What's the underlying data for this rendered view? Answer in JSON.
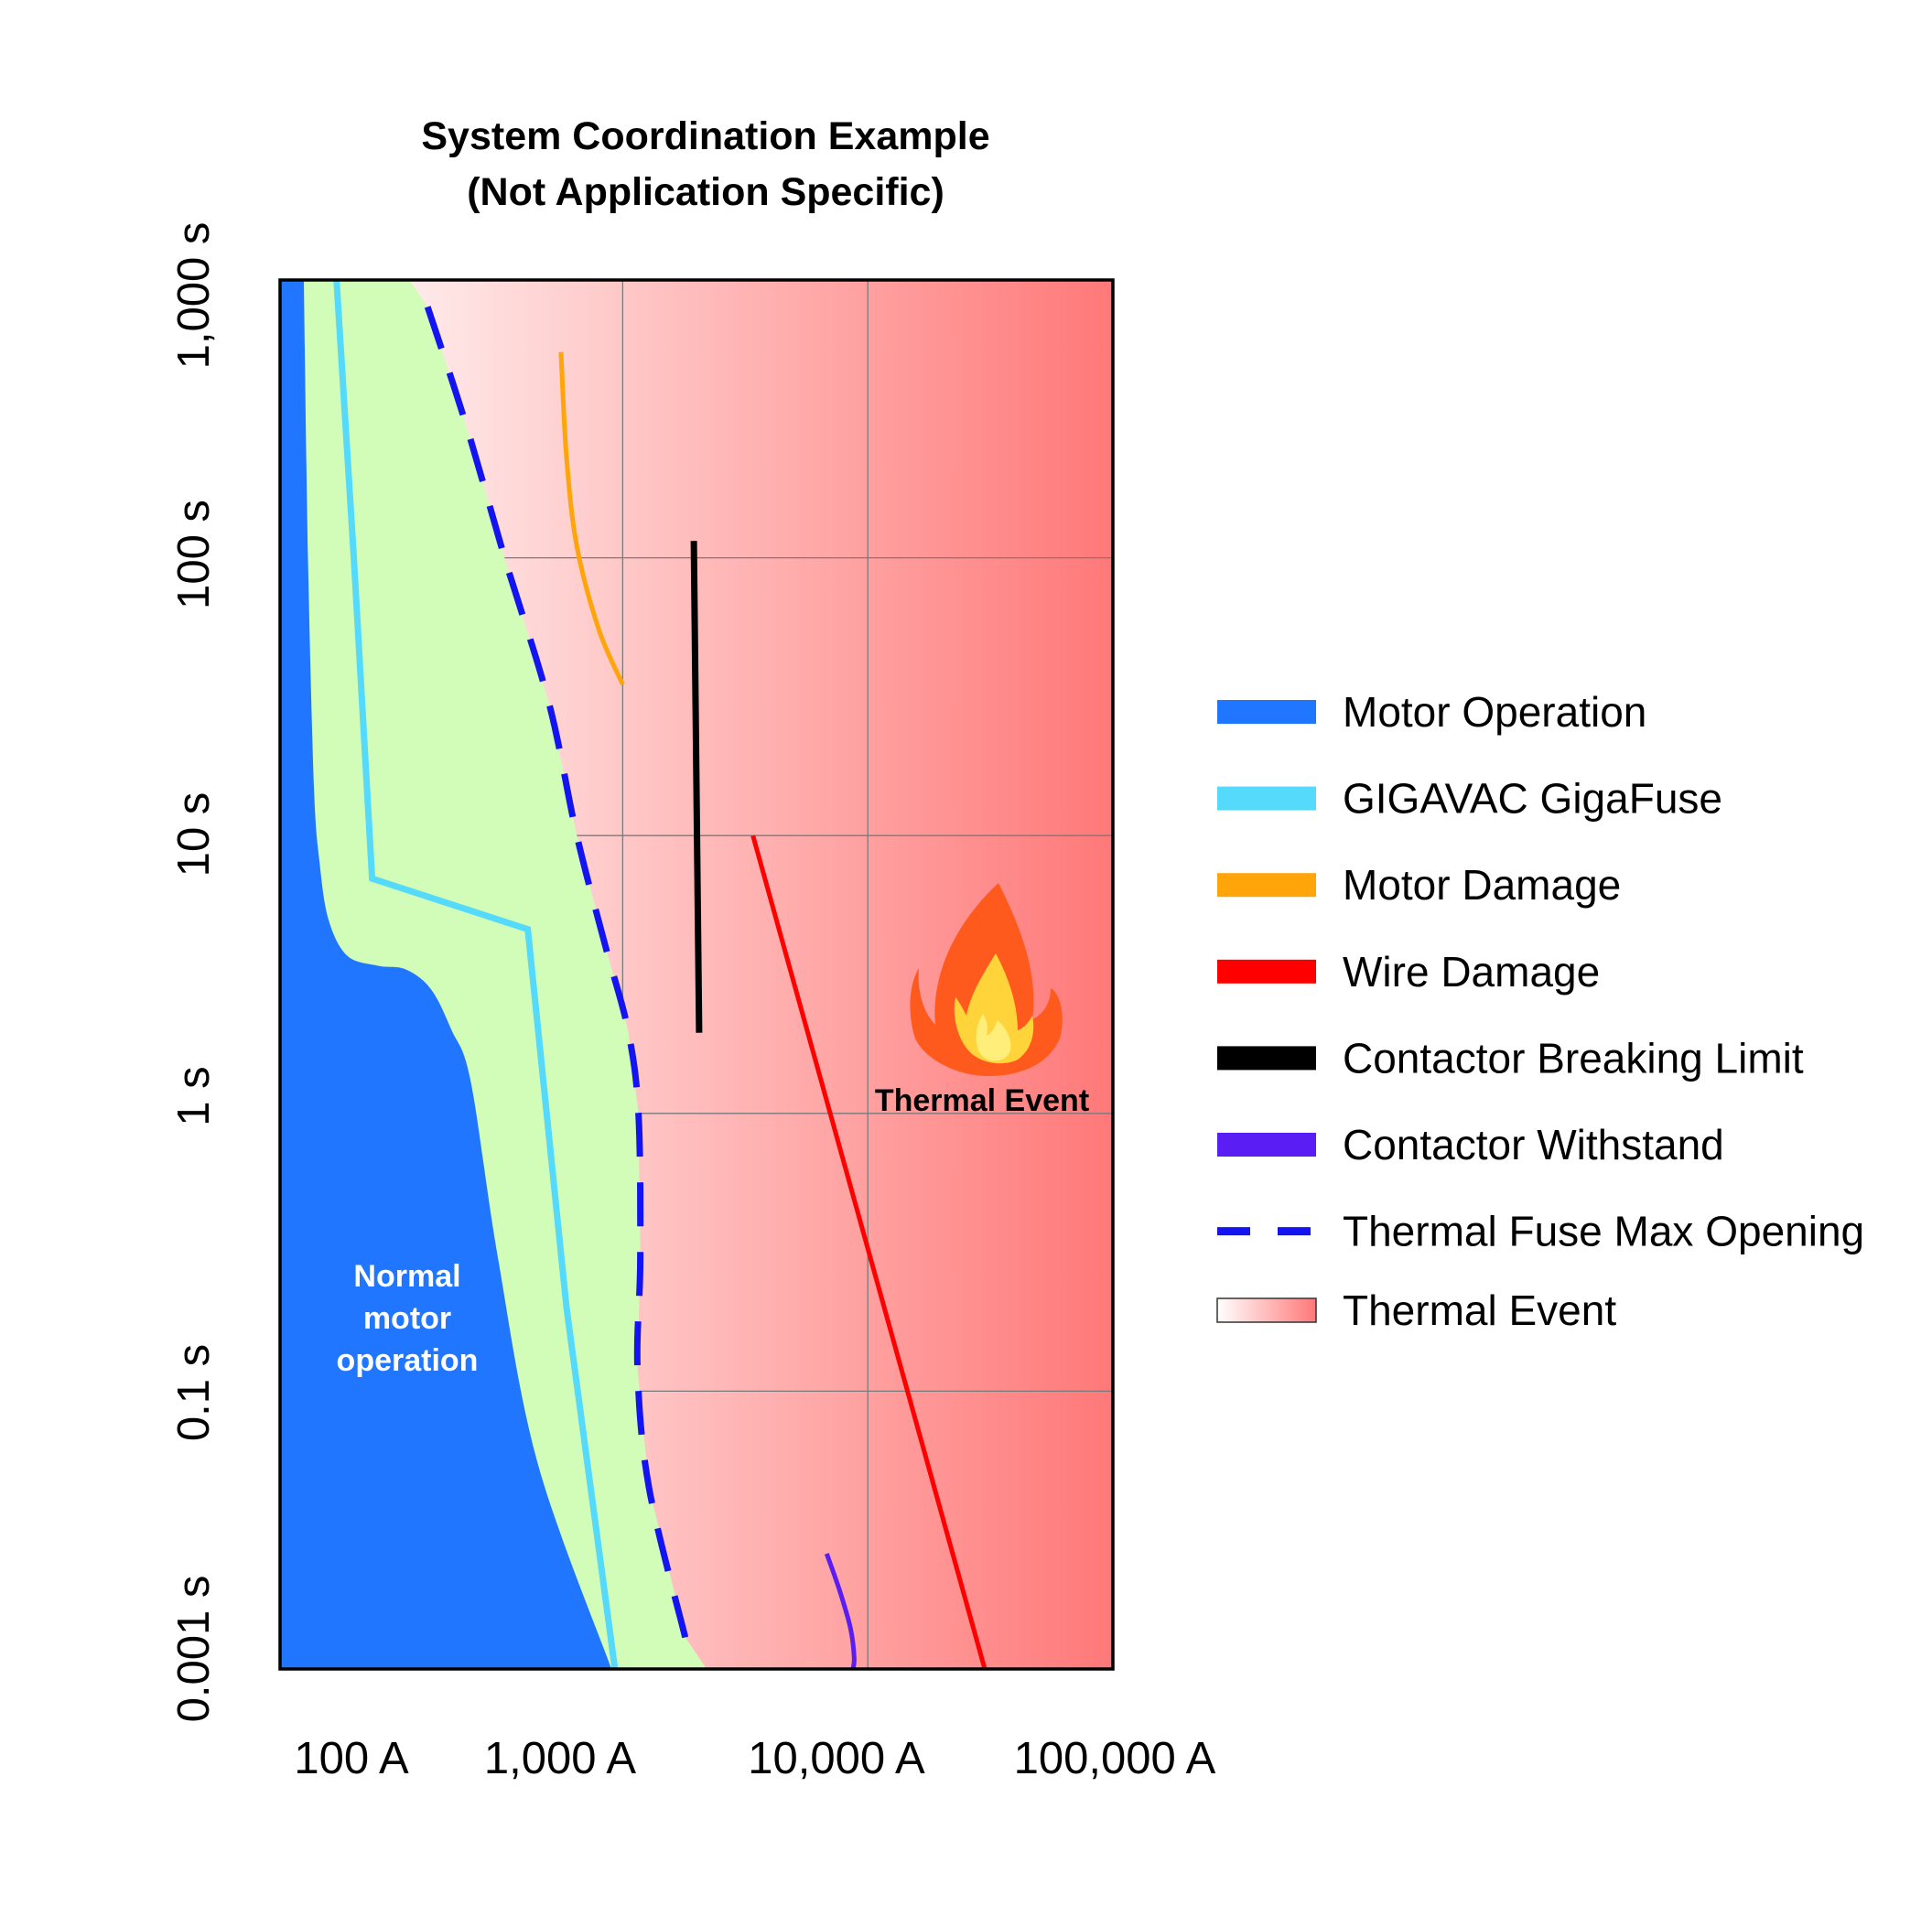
{
  "chart_data": {
    "type": "line",
    "title": "System Coordination Example",
    "subtitle": "(Not Application Specific)",
    "xlabel": "",
    "ylabel": "",
    "x_scale": "log",
    "y_scale": "log",
    "xlim": [
      40,
      100000
    ],
    "ylim": [
      0.01,
      1000
    ],
    "x_tick_labels": [
      "100 A",
      "1,000 A",
      "10,000 A",
      "100,000 A"
    ],
    "y_tick_labels": [
      "1,000 s",
      "100 s",
      "10 s",
      "1 s",
      "0.1 s",
      "0.001 s"
    ],
    "grid": true,
    "legend_position": "right",
    "annotations": [
      {
        "id": "normal-motor",
        "lines": [
          "Normal",
          "motor",
          "operation"
        ]
      },
      {
        "id": "thermal-event",
        "lines": [
          "Thermal Event"
        ]
      }
    ],
    "series": [
      {
        "key": "motor_operation",
        "name": "Motor Operation",
        "style": "area",
        "color": "#2176ff",
        "points": [
          [
            40,
            1000
          ],
          [
            50,
            1000
          ],
          [
            52,
            100
          ],
          [
            55,
            15
          ],
          [
            58,
            8
          ],
          [
            63,
            5
          ],
          [
            75,
            3.7
          ],
          [
            100,
            3.4
          ],
          [
            130,
            3.3
          ],
          [
            165,
            2.8
          ],
          [
            200,
            2.0
          ],
          [
            240,
            1.3
          ],
          [
            310,
            0.3
          ],
          [
            450,
            0.055
          ],
          [
            900,
            0.01
          ]
        ]
      },
      {
        "key": "gigavac_gigafuse",
        "name": "GIGAVAC GigaFuse",
        "style": "line",
        "color": "#55dafc",
        "points": [
          [
            68,
            1000
          ],
          [
            80,
            100
          ],
          [
            95,
            7
          ],
          [
            410,
            4.6
          ],
          [
            590,
            0.2
          ],
          [
            930,
            0.01
          ]
        ]
      },
      {
        "key": "motor_damage",
        "name": "Motor Damage",
        "style": "line",
        "color": "#ffa50a",
        "points": [
          [
            560,
            550
          ],
          [
            590,
            230
          ],
          [
            650,
            110
          ],
          [
            800,
            55
          ],
          [
            1000,
            35
          ]
        ]
      },
      {
        "key": "wire_damage",
        "name": "Wire Damage",
        "style": "line",
        "color": "#ff0000",
        "points": [
          [
            3400,
            10
          ],
          [
            30000,
            0.01
          ]
        ]
      },
      {
        "key": "contactor_breaking_limit",
        "name": "Contactor Breaking Limit",
        "style": "line",
        "color": "#000000",
        "points": [
          [
            1950,
            115
          ],
          [
            2050,
            1.95
          ]
        ]
      },
      {
        "key": "contactor_withstand",
        "name": "Contactor Withstand",
        "style": "line",
        "color": "#5a1ef5",
        "points": [
          [
            6800,
            0.026
          ],
          [
            7700,
            0.019
          ],
          [
            8500,
            0.014
          ],
          [
            8800,
            0.011
          ],
          [
            8700,
            0.01
          ]
        ]
      },
      {
        "key": "thermal_fuse_max_opening",
        "name": "Thermal Fuse Max Opening",
        "style": "dashed",
        "color": "#1414f0",
        "points": [
          [
            160,
            800
          ],
          [
            230,
            300
          ],
          [
            330,
            100
          ],
          [
            500,
            30
          ],
          [
            650,
            10
          ],
          [
            850,
            4
          ],
          [
            1050,
            2
          ],
          [
            1160,
            1
          ],
          [
            1180,
            0.3
          ],
          [
            1150,
            0.12
          ],
          [
            1280,
            0.045
          ],
          [
            1800,
            0.013
          ]
        ]
      },
      {
        "key": "thermal_event",
        "name": "Thermal Event",
        "style": "gradient",
        "color": "#ff7878"
      }
    ],
    "green_zone_color": "#d2fdb8",
    "thermal_gradient": [
      "#ffffff",
      "#ff7878"
    ]
  }
}
